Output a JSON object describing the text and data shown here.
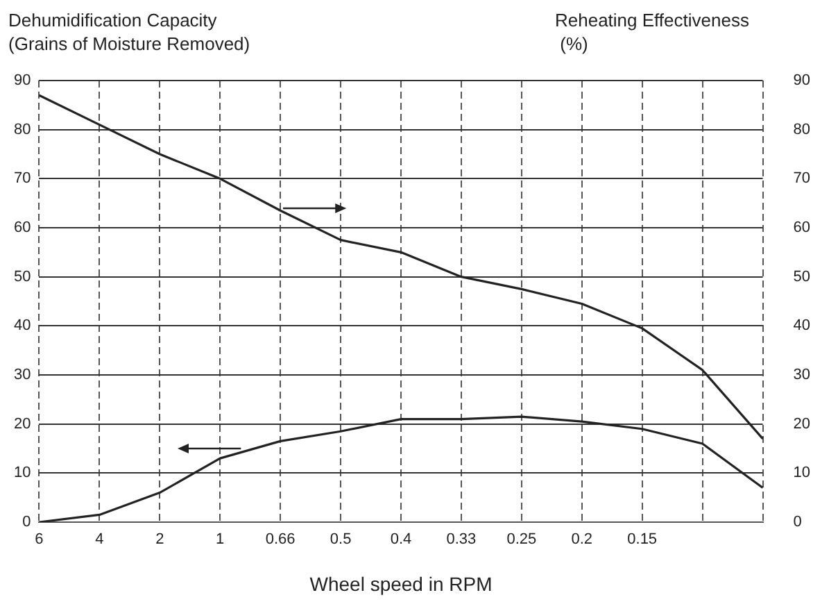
{
  "chart_data": {
    "type": "line",
    "ylabel": "Dehumidification Capacity\n(Grains of Moisture Removed)",
    "y2label": "Reheating Effectiveness\n (%)",
    "xlabel": "Wheel speed in RPM",
    "categories": [
      "6",
      "4",
      "2",
      "1",
      "0.66",
      "0.5",
      "0.4",
      "0.33",
      "0.25",
      "0.2",
      "0.15",
      null,
      null
    ],
    "series": [
      {
        "color": "#222222",
        "axis": "y2",
        "values": [
          87,
          81,
          75,
          70,
          63.5,
          57.5,
          55,
          50,
          47.5,
          44.5,
          39.5,
          31,
          17
        ]
      },
      {
        "color": "#222222",
        "axis": "y",
        "values": [
          0,
          1.5,
          6,
          13,
          16.5,
          18.5,
          21,
          21,
          21.5,
          20.5,
          19,
          16,
          7
        ]
      }
    ],
    "ylim": [
      0,
      90
    ],
    "yticks": [
      0,
      10,
      20,
      30,
      40,
      50,
      60,
      70,
      80,
      90
    ],
    "y2lim": [
      0,
      90
    ],
    "y2ticks": [
      0,
      10,
      20,
      30,
      40,
      50,
      60,
      70,
      80,
      90
    ],
    "grid": true,
    "legend": false,
    "marker": "none",
    "line_style": "solid"
  }
}
